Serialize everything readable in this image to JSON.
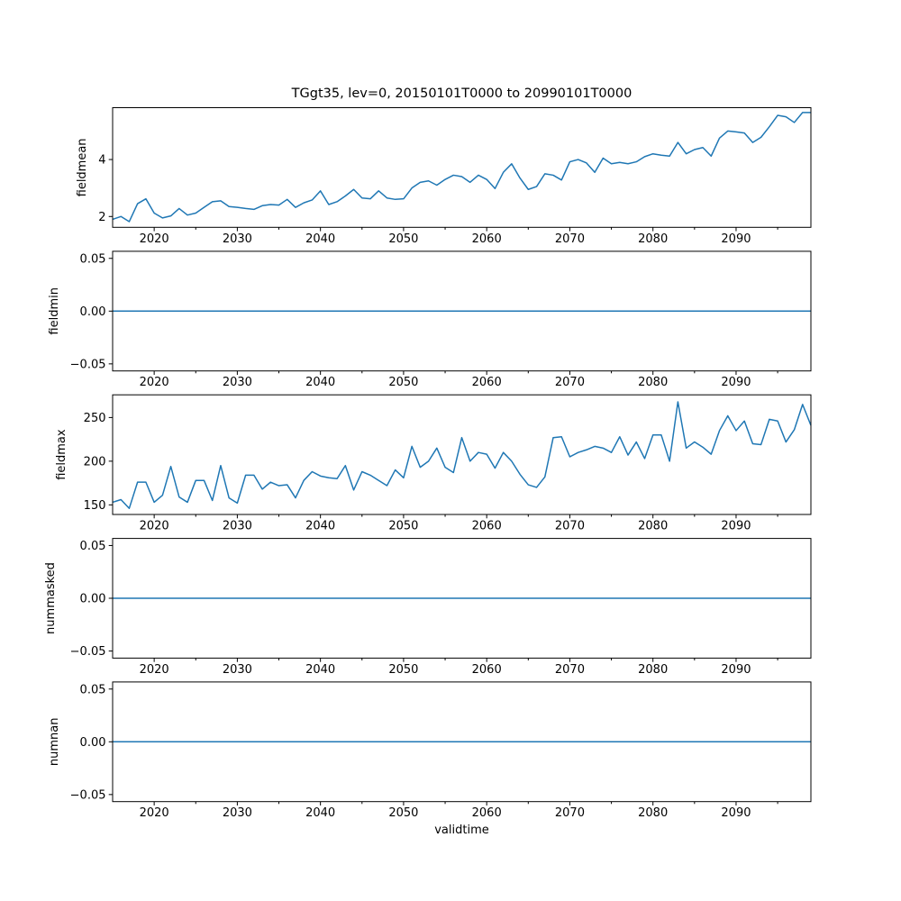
{
  "figure": {
    "background_color": "#ffffff",
    "frame_color": "#000000",
    "text_color": "#000000"
  },
  "chart_data": {
    "type": "line",
    "title": "TGgt35, lev=0, 20150101T0000 to 20990101T0000",
    "xlabel": "validtime",
    "line_color": "#1f77b4",
    "line_width": 1.5,
    "grid": false,
    "legend": "none",
    "xlim": [
      2015,
      2099
    ],
    "xticks_major": [
      2020,
      2030,
      2040,
      2050,
      2060,
      2070,
      2080,
      2090
    ],
    "xtick_labels": [
      "2020",
      "2030",
      "2040",
      "2050",
      "2060",
      "2070",
      "2080",
      "2090"
    ],
    "xticks_minor": [
      2025,
      2035,
      2045,
      2055,
      2065,
      2075,
      2085,
      2095
    ],
    "x": [
      2015,
      2016,
      2017,
      2018,
      2019,
      2020,
      2021,
      2022,
      2023,
      2024,
      2025,
      2026,
      2027,
      2028,
      2029,
      2030,
      2031,
      2032,
      2033,
      2034,
      2035,
      2036,
      2037,
      2038,
      2039,
      2040,
      2041,
      2042,
      2043,
      2044,
      2045,
      2046,
      2047,
      2048,
      2049,
      2050,
      2051,
      2052,
      2053,
      2054,
      2055,
      2056,
      2057,
      2058,
      2059,
      2060,
      2061,
      2062,
      2063,
      2064,
      2065,
      2066,
      2067,
      2068,
      2069,
      2070,
      2071,
      2072,
      2073,
      2074,
      2075,
      2076,
      2077,
      2078,
      2079,
      2080,
      2081,
      2082,
      2083,
      2084,
      2085,
      2086,
      2087,
      2088,
      2089,
      2090,
      2091,
      2092,
      2093,
      2094,
      2095,
      2096,
      2097,
      2098,
      2099
    ],
    "subplots": [
      {
        "name": "fieldmean",
        "ylabel": "fieldmean",
        "ylim": [
          1.62,
          5.82
        ],
        "ytick_values": [
          2,
          4
        ],
        "ytick_labels": [
          "2",
          "4"
        ],
        "values": [
          1.9,
          2.0,
          1.82,
          2.45,
          2.62,
          2.12,
          1.95,
          2.02,
          2.28,
          2.05,
          2.12,
          2.32,
          2.52,
          2.55,
          2.35,
          2.32,
          2.28,
          2.25,
          2.38,
          2.42,
          2.4,
          2.6,
          2.32,
          2.48,
          2.58,
          2.9,
          2.42,
          2.52,
          2.72,
          2.95,
          2.65,
          2.62,
          2.9,
          2.65,
          2.6,
          2.62,
          3.0,
          3.2,
          3.25,
          3.1,
          3.3,
          3.45,
          3.4,
          3.2,
          3.45,
          3.3,
          2.98,
          3.55,
          3.85,
          3.35,
          2.95,
          3.05,
          3.5,
          3.45,
          3.28,
          3.92,
          4.0,
          3.88,
          3.55,
          4.05,
          3.85,
          3.9,
          3.85,
          3.92,
          4.1,
          4.2,
          4.15,
          4.12,
          4.6,
          4.2,
          4.35,
          4.42,
          4.12,
          4.75,
          5.0,
          4.97,
          4.93,
          4.6,
          4.78,
          5.15,
          5.55,
          5.5,
          5.3,
          5.65,
          5.65
        ]
      },
      {
        "name": "fieldmin",
        "ylabel": "fieldmin",
        "ylim": [
          -0.0567,
          0.0567
        ],
        "ytick_values": [
          0.05,
          0.0,
          -0.05
        ],
        "ytick_labels": [
          "0.05",
          "0.00",
          "−0.05"
        ],
        "constant": 0.0
      },
      {
        "name": "fieldmax",
        "ylabel": "fieldmax",
        "ylim": [
          139,
          276
        ],
        "ytick_values": [
          150,
          200,
          250
        ],
        "ytick_labels": [
          "150",
          "200",
          "250"
        ],
        "values": [
          153,
          156,
          146,
          176,
          176,
          153,
          161,
          194,
          159,
          153,
          178,
          178,
          155,
          195,
          158,
          152,
          184,
          184,
          168,
          176,
          172,
          173,
          158,
          178,
          188,
          183,
          181,
          180,
          195,
          167,
          188,
          184,
          178,
          172,
          190,
          181,
          217,
          193,
          200,
          215,
          193,
          187,
          227,
          200,
          210,
          208,
          192,
          210,
          200,
          185,
          173,
          170,
          182,
          227,
          228,
          205,
          210,
          213,
          217,
          215,
          210,
          228,
          207,
          222,
          203,
          230,
          230,
          200,
          268,
          215,
          222,
          216,
          208,
          235,
          252,
          235,
          246,
          220,
          219,
          248,
          246,
          222,
          236,
          265,
          241
        ]
      },
      {
        "name": "nummasked",
        "ylabel": "nummasked",
        "ylim": [
          -0.0567,
          0.0567
        ],
        "ytick_values": [
          0.05,
          0.0,
          -0.05
        ],
        "ytick_labels": [
          "0.05",
          "0.00",
          "−0.05"
        ],
        "constant": 0.0
      },
      {
        "name": "numnan",
        "ylabel": "numnan",
        "ylim": [
          -0.0567,
          0.0567
        ],
        "ytick_values": [
          0.05,
          0.0,
          -0.05
        ],
        "ytick_labels": [
          "0.05",
          "0.00",
          "−0.05"
        ],
        "constant": 0.0
      }
    ]
  }
}
